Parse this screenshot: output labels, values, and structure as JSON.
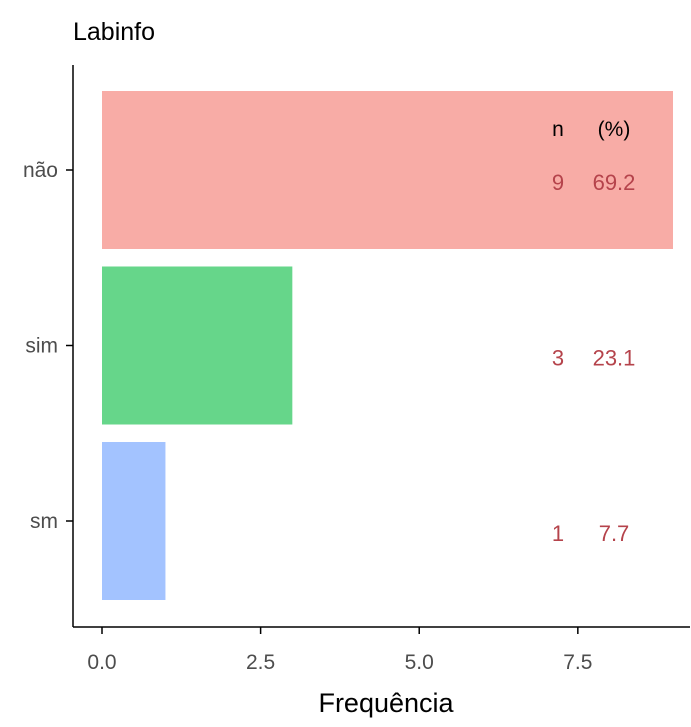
{
  "chart_data": {
    "type": "bar",
    "orientation": "horizontal",
    "title": "Labinfo",
    "xlabel": "Frequência",
    "ylabel": "",
    "categories": [
      "não",
      "sim",
      "sm"
    ],
    "values": [
      9,
      3,
      1
    ],
    "percent": [
      "69.2",
      "23.1",
      "7.7"
    ],
    "colors": [
      "#f8aca6",
      "#66d68a",
      "#a3c3ff"
    ],
    "xlim": [
      0,
      9
    ],
    "xticks": [
      "0.0",
      "2.5",
      "5.0",
      "7.5"
    ],
    "xtick_values": [
      0,
      2.5,
      5,
      7.5
    ],
    "annotation_header": {
      "n": "n",
      "pct": "(%)"
    },
    "annotation_color": "#b5434b",
    "grid": false,
    "legend": "none"
  }
}
